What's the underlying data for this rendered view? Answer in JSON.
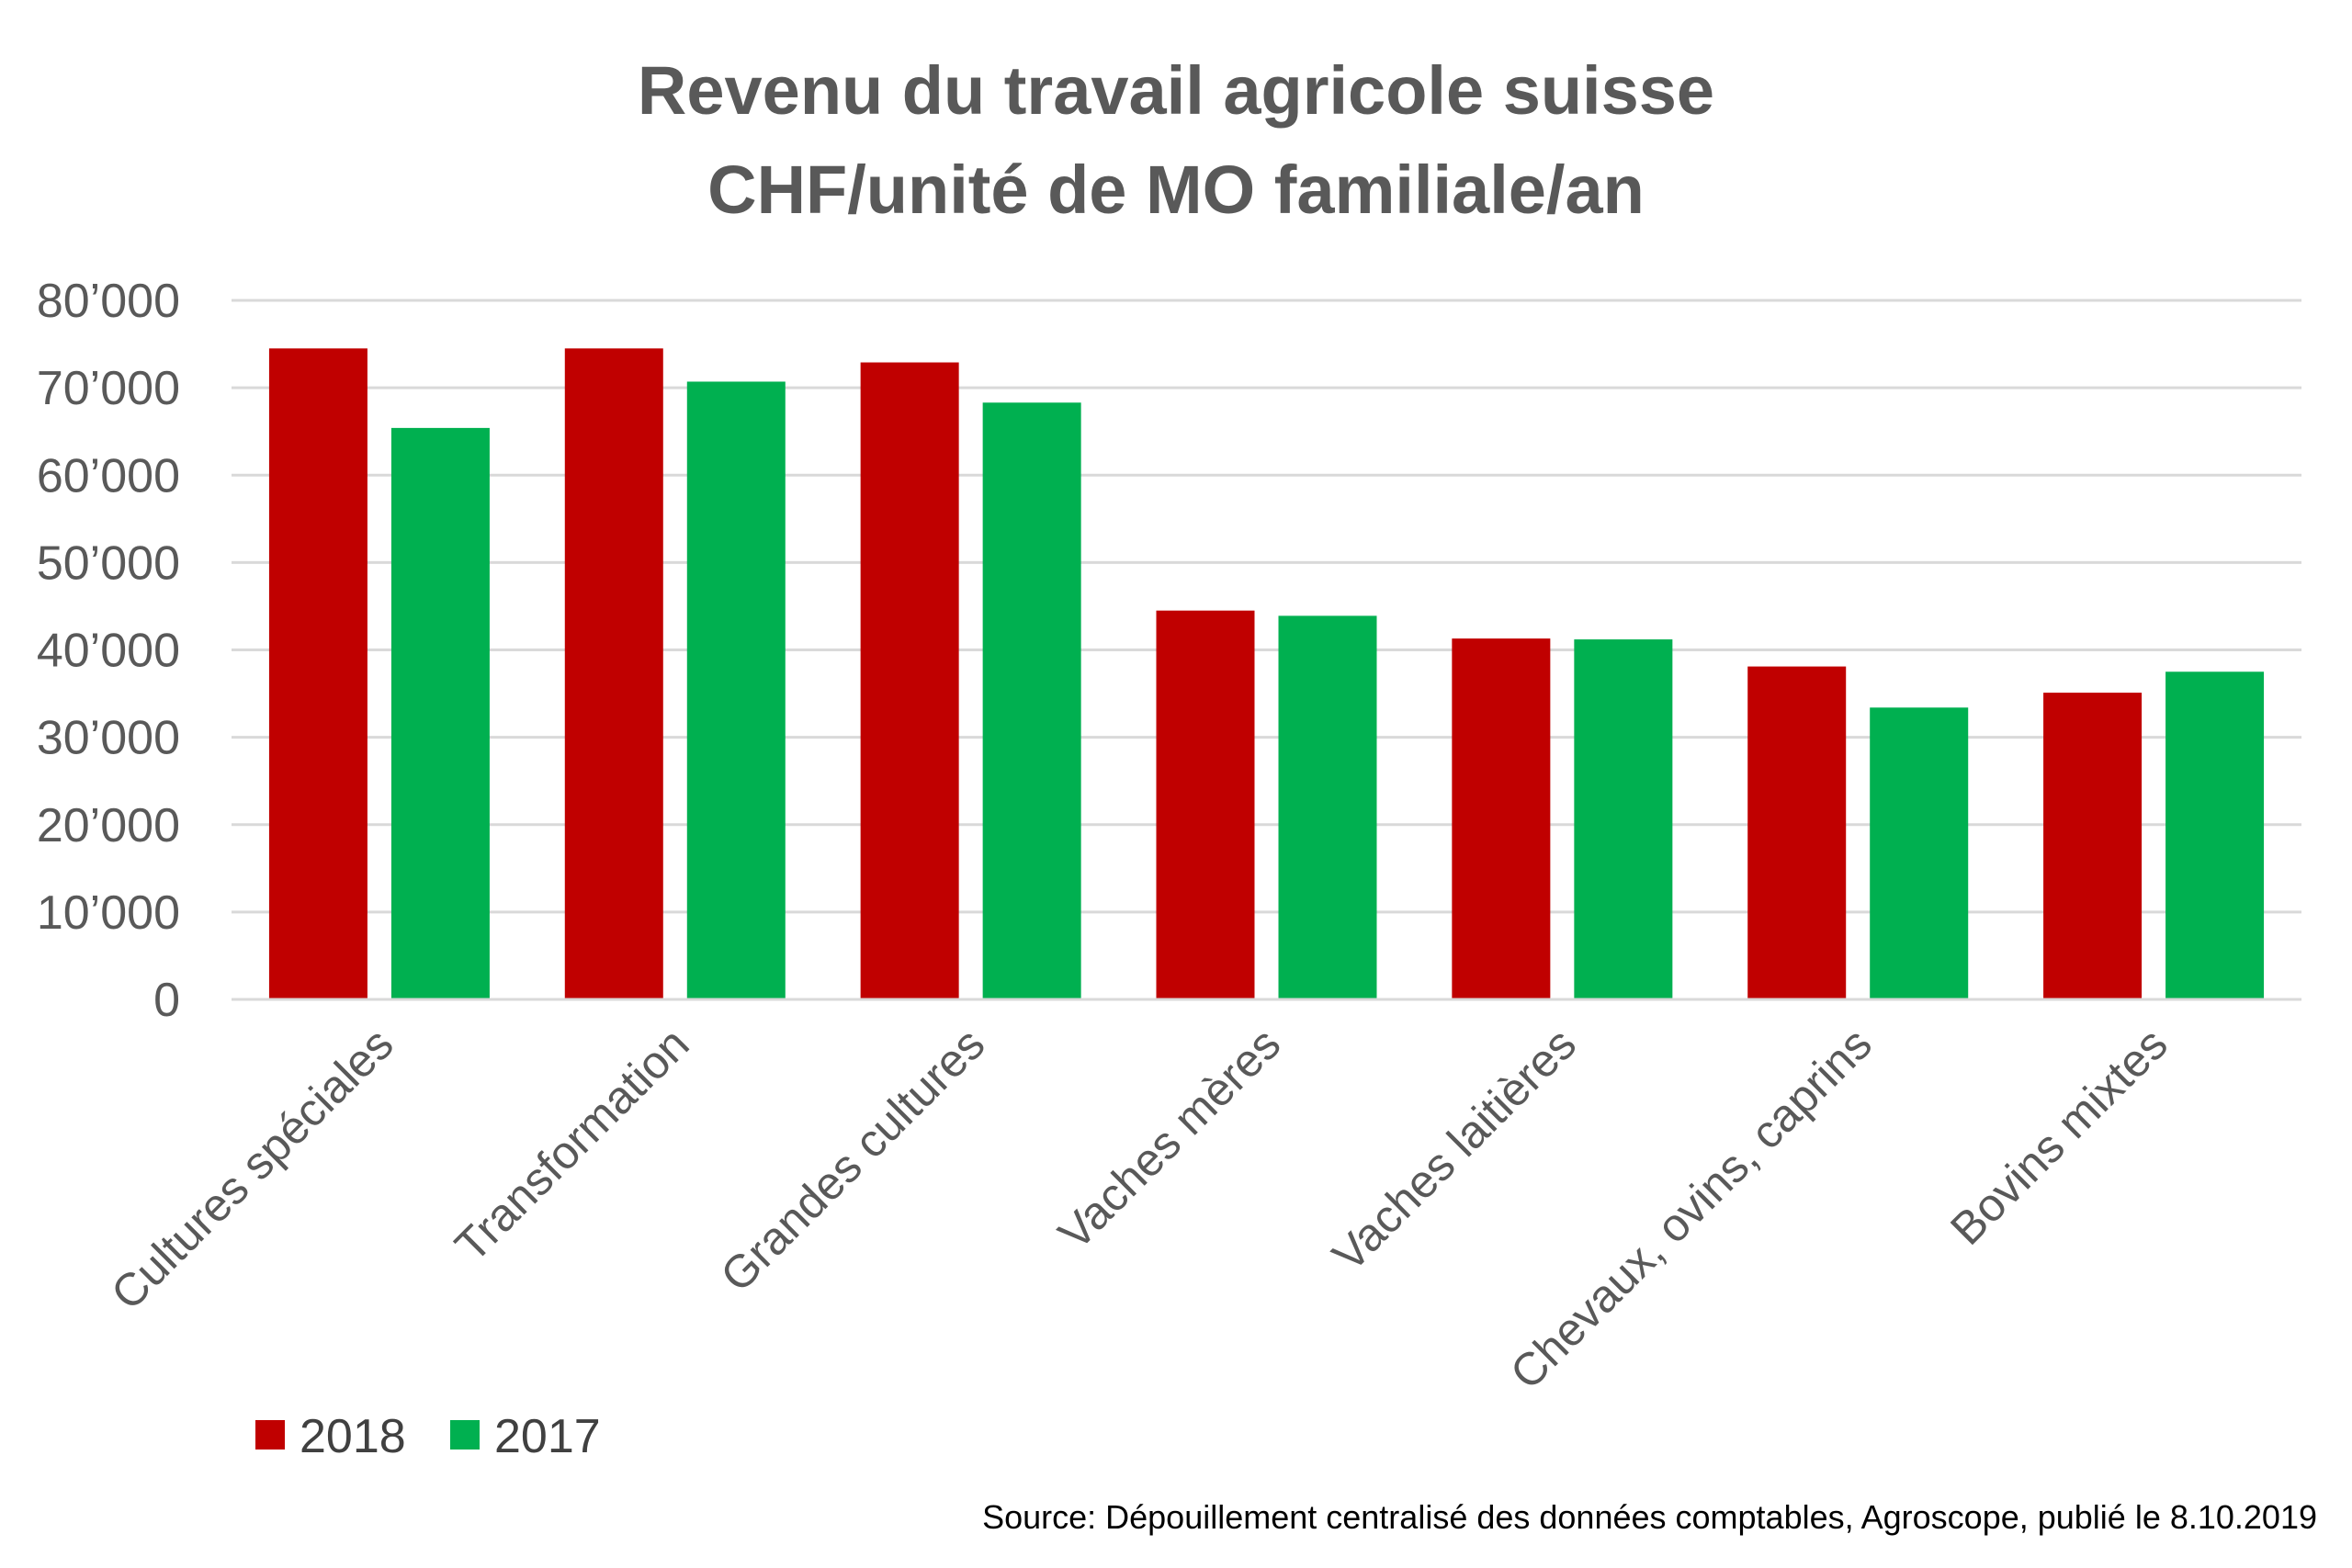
{
  "chart_data": {
    "type": "bar",
    "title": [
      "Revenu du travail agricole suisse",
      "CHF/unité de MO familiale/an"
    ],
    "categories": [
      "Cultures spéciales",
      "Transformation",
      "Grandes cultures",
      "Vaches mères",
      "Vaches laitières",
      "Chevaux, ovins, caprins",
      "Bovins mixtes"
    ],
    "series": [
      {
        "name": "2018",
        "color": "#c00000",
        "values": [
          74500,
          74500,
          72900,
          44500,
          41300,
          38100,
          35100
        ]
      },
      {
        "name": "2017",
        "color": "#00b050",
        "values": [
          65400,
          70700,
          68300,
          43900,
          41200,
          33400,
          37500
        ]
      }
    ],
    "ylim": [
      0,
      80000
    ],
    "yticks": [
      {
        "value": 0,
        "label": "0"
      },
      {
        "value": 10000,
        "label": "10’000"
      },
      {
        "value": 20000,
        "label": "20’000"
      },
      {
        "value": 30000,
        "label": "30’000"
      },
      {
        "value": 40000,
        "label": "40’000"
      },
      {
        "value": 50000,
        "label": "50’000"
      },
      {
        "value": 60000,
        "label": "60’000"
      },
      {
        "value": 70000,
        "label": "70’000"
      },
      {
        "value": 80000,
        "label": "80’000"
      }
    ],
    "xlabel": "",
    "ylabel": "",
    "grid": true,
    "legend_position": "bottom-left",
    "gridline_color": "#d9d9d9",
    "source": "Source: Dépouillement centralisé des données comptables, Agroscope, publié le 8.10.2019"
  }
}
